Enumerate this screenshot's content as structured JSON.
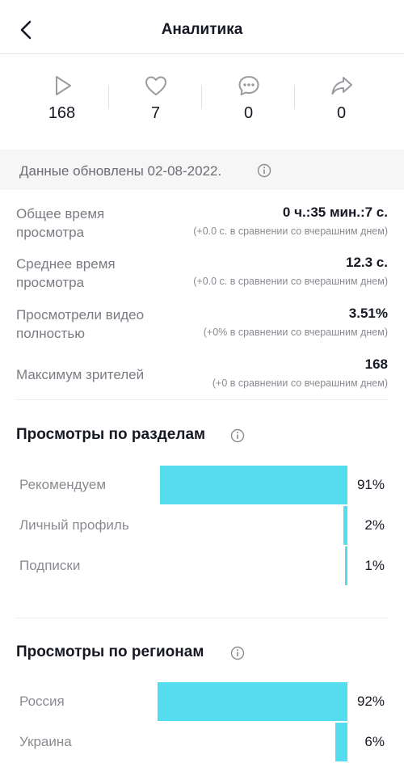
{
  "header": {
    "title": "Аналитика"
  },
  "stats": [
    {
      "icon": "play-icon",
      "value": "168"
    },
    {
      "icon": "heart-icon",
      "value": "7"
    },
    {
      "icon": "comment-icon",
      "value": "0"
    },
    {
      "icon": "share-icon",
      "value": "0"
    }
  ],
  "updated": {
    "text": "Данные обновлены 02-08-2022."
  },
  "metrics": [
    {
      "label": "Общее время просмотра",
      "value": "0 ч.:35 мин.:7 с.",
      "compare": "(+0.0 с. в сравнении со вчерашним днем)"
    },
    {
      "label": "Среднее время просмотра",
      "value": "12.3 с.",
      "compare": "(+0.0 с. в сравнении со вчерашним днем)"
    },
    {
      "label": "Просмотрели видео полностью",
      "value": "3.51%",
      "compare": "(+0% в сравнении со вчерашним днем)"
    },
    {
      "label": "Максимум зрителей",
      "value": "168",
      "compare": "(+0 в сравнении со вчерашним днем)"
    }
  ],
  "sections": {
    "by_section": {
      "title": "Просмотры по разделам",
      "rows": [
        {
          "label": "Рекомендуем",
          "percent": 91,
          "display": "91%"
        },
        {
          "label": "Личный профиль",
          "percent": 2,
          "display": "2%"
        },
        {
          "label": "Подписки",
          "percent": 1,
          "display": "1%"
        }
      ]
    },
    "by_region": {
      "title": "Просмотры по регионам",
      "rows": [
        {
          "label": "Россия",
          "percent": 92,
          "display": "92%"
        },
        {
          "label": "Украина",
          "percent": 6,
          "display": "6%"
        }
      ]
    }
  },
  "colors": {
    "bar": "#56dcef",
    "text_primary": "#161823",
    "text_secondary": "#8a8b91",
    "banner_bg": "#f6f6f7"
  }
}
